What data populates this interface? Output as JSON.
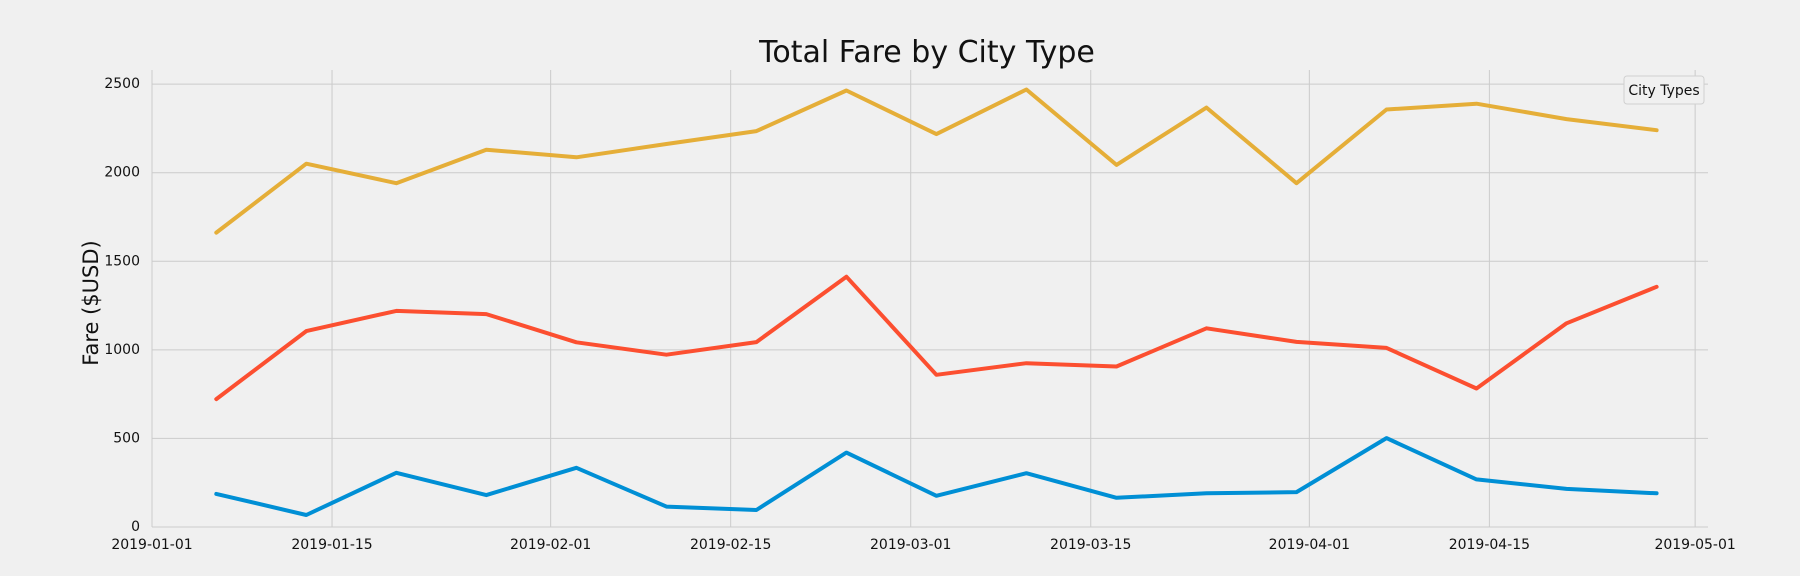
{
  "chart_data": {
    "type": "line",
    "title": "Total Fare by City Type",
    "xlabel": "",
    "ylabel": "Fare ($USD)",
    "legend_title": "City Types",
    "legend_position": "top-right",
    "grid": true,
    "x_axis": "date",
    "xlim": [
      "2019-01-01",
      "2019-05-02"
    ],
    "ylim": [
      0,
      2580
    ],
    "x_ticks": [
      "2019-01-01",
      "2019-01-15",
      "2019-02-01",
      "2019-02-15",
      "2019-03-01",
      "2019-03-15",
      "2019-04-01",
      "2019-04-15",
      "2019-05-01"
    ],
    "y_ticks": [
      0,
      500,
      1000,
      1500,
      2000,
      2500
    ],
    "x": [
      "2019-01-06",
      "2019-01-13",
      "2019-01-20",
      "2019-01-27",
      "2019-02-03",
      "2019-02-10",
      "2019-02-17",
      "2019-02-24",
      "2019-03-03",
      "2019-03-10",
      "2019-03-17",
      "2019-03-24",
      "2019-03-31",
      "2019-04-07",
      "2019-04-14",
      "2019-04-21",
      "2019-04-28"
    ],
    "series": [
      {
        "color": "#008fd5",
        "values": [
          187,
          68,
          306,
          180,
          334,
          115,
          96,
          420,
          176,
          304,
          165,
          190,
          197,
          502,
          269,
          215,
          190
        ]
      },
      {
        "color": "#fc4f30",
        "values": [
          722,
          1106,
          1220,
          1202,
          1043,
          973,
          1044,
          1413,
          859,
          925,
          906,
          1122,
          1045,
          1011,
          782,
          1150,
          1356
        ]
      },
      {
        "color": "#e5ae38",
        "values": [
          1662,
          2051,
          1941,
          2130,
          2087,
          2162,
          2235,
          2464,
          2218,
          2470,
          2044,
          2368,
          1941,
          2357,
          2390,
          2303,
          2240
        ]
      }
    ]
  }
}
